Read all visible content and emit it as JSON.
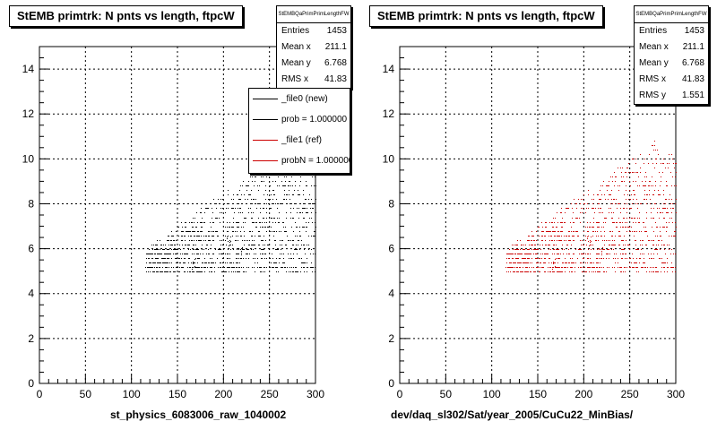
{
  "chart_data": [
    {
      "type": "scatter",
      "title": "StEMB primtrk: N pnts vs length, ftpcW",
      "xlabel": "st_physics_6083006_raw_1040002",
      "ylabel": "",
      "xlim": [
        0,
        300
      ],
      "ylim": [
        0,
        15
      ],
      "x_ticks": [
        "0",
        "50",
        "100",
        "150",
        "200",
        "250",
        "300"
      ],
      "y_ticks": [
        "0",
        "2",
        "4",
        "6",
        "8",
        "10",
        "12",
        "14"
      ],
      "grid": true,
      "marker_color": "#000000",
      "stats": {
        "name": "StEMBQaPrimPrimLengthFW",
        "rows": [
          {
            "label": "Entries",
            "value": "1453"
          },
          {
            "label": "Mean x",
            "value": "211.1"
          },
          {
            "label": "Mean y",
            "value": "6.768"
          },
          {
            "label": "RMS x",
            "value": "41.83"
          }
        ]
      },
      "legend": [
        {
          "label": "_file0 (new)",
          "color": "#000000"
        },
        {
          "label": "prob = 1.000000",
          "color": "#000000"
        },
        {
          "label": "_file1 (ref)",
          "color": "#cc0000"
        },
        {
          "label": "probN = 1.000000",
          "color": "#cc0000"
        }
      ],
      "point_cloud": {
        "count": 1453,
        "x_range": [
          115,
          300
        ],
        "y_range": [
          5,
          11
        ],
        "mean_x": 211.1,
        "mean_y": 6.768
      }
    },
    {
      "type": "scatter",
      "title": "StEMB primtrk: N pnts vs length, ftpcW",
      "xlabel": "dev/daq_sl302/Sat/year_2005/CuCu22_MinBias/",
      "ylabel": "",
      "xlim": [
        0,
        300
      ],
      "ylim": [
        0,
        15
      ],
      "x_ticks": [
        "0",
        "50",
        "100",
        "150",
        "200",
        "250",
        "300"
      ],
      "y_ticks": [
        "0",
        "2",
        "4",
        "6",
        "8",
        "10",
        "12",
        "14"
      ],
      "grid": true,
      "marker_color": "#cc0000",
      "stats": {
        "name": "StEMBQaPrimPrimLengthFW",
        "rows": [
          {
            "label": "Entries",
            "value": "1453"
          },
          {
            "label": "Mean x",
            "value": "211.1"
          },
          {
            "label": "Mean y",
            "value": "6.768"
          },
          {
            "label": "RMS x",
            "value": "41.83"
          },
          {
            "label": "RMS y",
            "value": "1.551"
          }
        ]
      },
      "point_cloud": {
        "count": 1453,
        "x_range": [
          115,
          300
        ],
        "y_range": [
          5,
          11
        ],
        "mean_x": 211.1,
        "mean_y": 6.768
      }
    }
  ]
}
